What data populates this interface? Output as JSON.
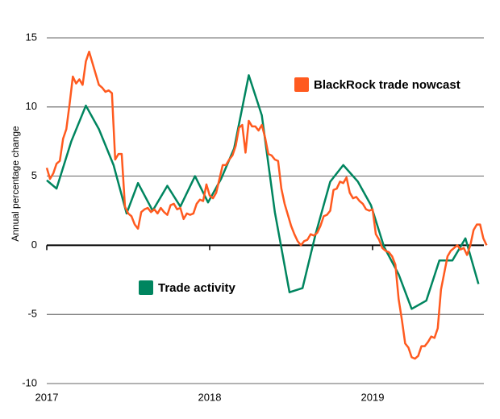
{
  "chart_data": {
    "type": "line",
    "y_label": "Annual percentage change",
    "xlim": [
      2017,
      2019.7
    ],
    "xticks": [
      2017,
      2018,
      2019
    ],
    "ylim": [
      -10,
      15
    ],
    "yticks": [
      -10,
      -5,
      0,
      5,
      10,
      15
    ],
    "grid": true,
    "series": [
      {
        "name": "BlackRock trade nowcast",
        "color": "#ff5a1f",
        "x": [
          2017,
          2017.02,
          2017.04,
          2017.06,
          2017.08,
          2017.1,
          2017.12,
          2017.14,
          2017.16,
          2017.18,
          2017.2,
          2017.22,
          2017.24,
          2017.26,
          2017.28,
          2017.3,
          2017.32,
          2017.34,
          2017.36,
          2017.38,
          2017.4,
          2017.42,
          2017.44,
          2017.46,
          2017.48,
          2017.5,
          2017.52,
          2017.54,
          2017.56,
          2017.58,
          2017.6,
          2017.62,
          2017.64,
          2017.66,
          2017.68,
          2017.7,
          2017.72,
          2017.74,
          2017.76,
          2017.78,
          2017.8,
          2017.82,
          2017.84,
          2017.86,
          2017.88,
          2017.9,
          2017.92,
          2017.94,
          2017.96,
          2017.98,
          2018,
          2018.02,
          2018.04,
          2018.06,
          2018.08,
          2018.1,
          2018.12,
          2018.14,
          2018.16,
          2018.18,
          2018.2,
          2018.22,
          2018.24,
          2018.26,
          2018.28,
          2018.3,
          2018.32,
          2018.34,
          2018.36,
          2018.38,
          2018.4,
          2018.42,
          2018.44,
          2018.46,
          2018.48,
          2018.5,
          2018.52,
          2018.54,
          2018.56,
          2018.58,
          2018.6,
          2018.62,
          2018.64,
          2018.66,
          2018.68,
          2018.7,
          2018.72,
          2018.74,
          2018.76,
          2018.78,
          2018.8,
          2018.82,
          2018.84,
          2018.86,
          2018.88,
          2018.9,
          2018.92,
          2018.94,
          2018.96,
          2018.98,
          2019,
          2019.02,
          2019.04,
          2019.06,
          2019.08,
          2019.1,
          2019.12,
          2019.14,
          2019.16,
          2019.18,
          2019.2,
          2019.22,
          2019.24,
          2019.26,
          2019.28,
          2019.3,
          2019.32,
          2019.34,
          2019.36,
          2019.38,
          2019.4,
          2019.42,
          2019.44,
          2019.46,
          2019.48,
          2019.5,
          2019.52,
          2019.54,
          2019.56,
          2019.58,
          2019.6,
          2019.62,
          2019.64,
          2019.66,
          2019.68,
          2019.7
        ],
        "values": [
          5.6,
          4.8,
          5.2,
          5.9,
          6.1,
          7.7,
          8.4,
          10.2,
          12.2,
          11.7,
          12.0,
          11.6,
          13.3,
          14.0,
          13.2,
          12.4,
          11.6,
          11.4,
          11.1,
          11.2,
          11.0,
          6.2,
          6.6,
          6.6,
          2.8,
          2.3,
          2.1,
          1.5,
          1.2,
          2.4,
          2.6,
          2.7,
          2.4,
          2.6,
          2.3,
          2.7,
          2.4,
          2.2,
          2.9,
          3.0,
          2.6,
          2.7,
          1.9,
          2.3,
          2.2,
          2.3,
          3.0,
          3.3,
          3.2,
          4.4,
          3.6,
          3.4,
          3.8,
          4.8,
          5.8,
          5.8,
          6.2,
          6.5,
          7.2,
          8.5,
          8.7,
          6.7,
          9.0,
          8.6,
          8.6,
          8.3,
          8.7,
          7.8,
          6.6,
          6.5,
          6.2,
          6.1,
          4.1,
          3.0,
          2.2,
          1.4,
          0.8,
          0.3,
          0.0,
          0.3,
          0.4,
          0.8,
          0.7,
          0.9,
          1.4,
          2.1,
          2.2,
          2.5,
          4.0,
          4.1,
          4.6,
          4.5,
          4.9,
          3.8,
          3.4,
          3.5,
          3.2,
          3.0,
          2.6,
          2.5,
          2.6,
          0.8,
          0.4,
          -0.2,
          -0.4,
          -0.5,
          -0.8,
          -1.4,
          -3.9,
          -5.4,
          -7.1,
          -7.4,
          -8.1,
          -8.2,
          -8.0,
          -7.3,
          -7.3,
          -7.0,
          -6.6,
          -6.7,
          -6.0,
          -3.2,
          -2.0,
          -0.8,
          -0.4,
          -0.2,
          0.0,
          -0.3,
          -0.2,
          -0.7,
          0.0,
          1.1,
          1.5,
          1.5,
          0.5,
          0.0
        ]
      },
      {
        "name": "Trade activity",
        "color": "#00855f",
        "x": [
          2017,
          2017.06,
          2017.15,
          2017.24,
          2017.32,
          2017.41,
          2017.49,
          2017.56,
          2017.65,
          2017.74,
          2017.82,
          2017.91,
          2017.99,
          2018.07,
          2018.15,
          2018.24,
          2018.32,
          2018.4,
          2018.49,
          2018.57,
          2018.65,
          2018.74,
          2018.82,
          2018.91,
          2018.99,
          2019.07,
          2019.16,
          2019.24,
          2019.33,
          2019.41,
          2019.49,
          2019.57,
          2019.65
        ],
        "values": [
          4.7,
          4.1,
          7.5,
          10.1,
          8.4,
          5.8,
          2.3,
          4.5,
          2.5,
          4.3,
          2.8,
          5.0,
          3.1,
          4.8,
          7.0,
          12.3,
          9.4,
          2.4,
          -3.4,
          -3.1,
          0.8,
          4.6,
          5.8,
          4.6,
          2.9,
          -0.1,
          -2.1,
          -4.6,
          -4.0,
          -1.1,
          -1.1,
          0.5,
          -2.8
        ]
      }
    ]
  }
}
